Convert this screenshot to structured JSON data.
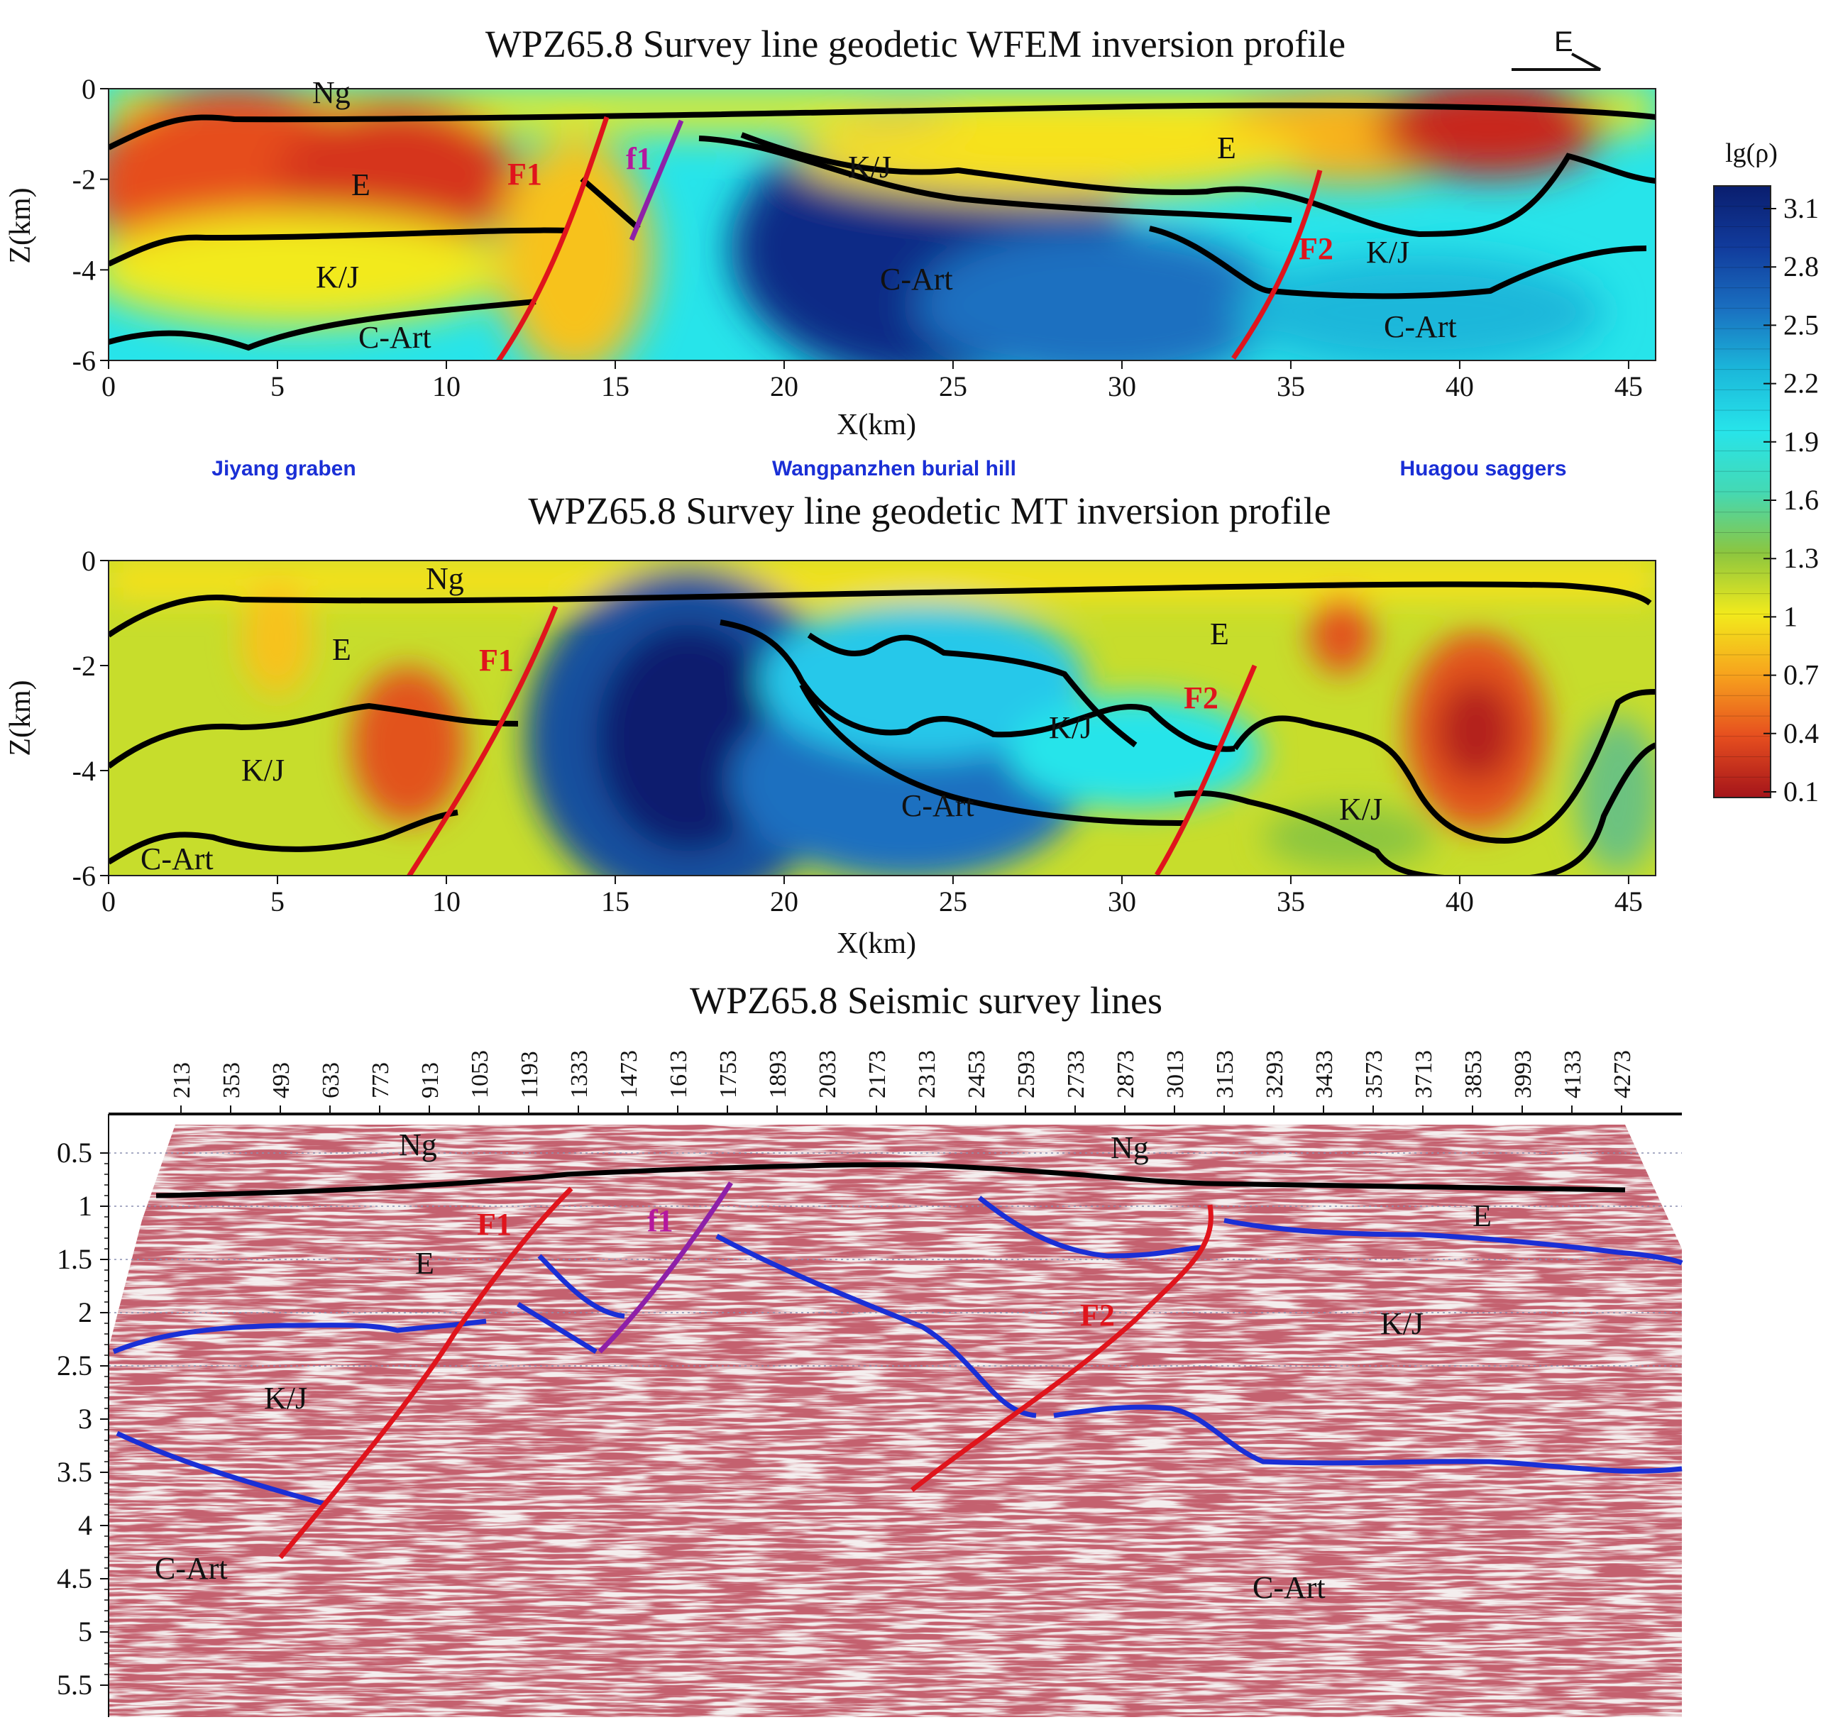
{
  "chart_data": [
    {
      "type": "heatmap",
      "title": "WPZ65.8 Survey line geodetic WFEM  inversion profile",
      "xlabel": "X(km)",
      "ylabel": "Z(km)",
      "xlim": [
        0,
        45.8
      ],
      "ylim": [
        -6,
        0
      ],
      "x_ticks": [
        "0",
        "5",
        "10",
        "15",
        "20",
        "25",
        "30",
        "35",
        "40",
        "45"
      ],
      "y_ticks": [
        "0",
        "-2",
        "-4",
        "-6"
      ],
      "direction_label": "E",
      "units": [
        "Ng",
        "E",
        "K/J",
        "C-Art",
        "K/J",
        "C-Art",
        "E",
        "K/J",
        "C-Art"
      ],
      "faults": [
        "F1",
        "f1",
        "F2"
      ],
      "regions": [
        "Jiyang graben",
        "Wangpanzhen burial hill",
        "Huagou saggers"
      ]
    },
    {
      "type": "heatmap",
      "title": "WPZ65.8 Survey line geodetic MT inversion profile",
      "xlabel": "X(km)",
      "ylabel": "Z(km)",
      "xlim": [
        0,
        45.8
      ],
      "ylim": [
        -6,
        0
      ],
      "x_ticks": [
        "0",
        "5",
        "10",
        "15",
        "20",
        "25",
        "30",
        "35",
        "40",
        "45"
      ],
      "y_ticks": [
        "0",
        "-2",
        "-4",
        "-6"
      ],
      "units": [
        "Ng",
        "E",
        "K/J",
        "C-Art",
        "C-Art",
        "E",
        "K/J",
        "K/J"
      ],
      "faults": [
        "F1",
        "F2"
      ]
    },
    {
      "type": "heatmap",
      "title": "WPZ65.8 Seismic survey lines",
      "cdp_ticks": [
        "213",
        "353",
        "493",
        "633",
        "773",
        "913",
        "1053",
        "1193",
        "1333",
        "1473",
        "1613",
        "1753",
        "1893",
        "2033",
        "2173",
        "2313",
        "2453",
        "2593",
        "2733",
        "2873",
        "3013",
        "3153",
        "3293",
        "3433",
        "3573",
        "3713",
        "3853",
        "3993",
        "4133",
        "4273"
      ],
      "time_ticks": [
        "0.5",
        "1",
        "1.5",
        "2",
        "2.5",
        "3",
        "3.5",
        "4",
        "4.5",
        "5",
        "5.5"
      ],
      "units": [
        "Ng",
        "Ng",
        "E",
        "K/J",
        "C-Art",
        "E",
        "K/J",
        "C-Art"
      ],
      "faults": [
        "F1",
        "f1",
        "F2"
      ]
    }
  ],
  "colorbar": {
    "label": "lg(ρ)",
    "ticks": [
      "3.1",
      "2.8",
      "2.5",
      "2.2",
      "1.9",
      "1.6",
      "1.3",
      "1",
      "0.7",
      "0.4",
      "0.1"
    ],
    "colors": [
      "#0a1e6e",
      "#113b9c",
      "#1a6fc0",
      "#1bb7da",
      "#27e4ea",
      "#44d9b4",
      "#8cc63f",
      "#f2ea1c",
      "#f7a21d",
      "#e64e1f",
      "#a4141a"
    ]
  }
}
